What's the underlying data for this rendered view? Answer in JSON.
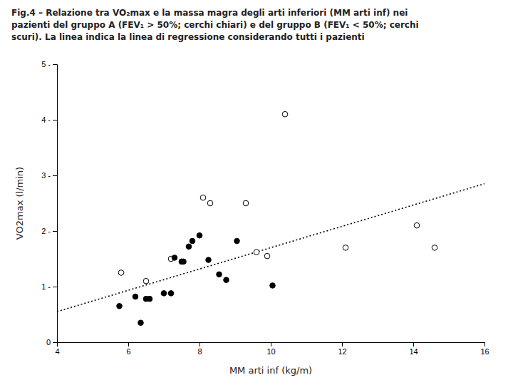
{
  "chart_data": {
    "type": "scatter",
    "title": "Fig.4 – Relazione tra VO₂max e la massa magra degli arti inferiori (MM arti inf) nei\npazienti del gruppo A (FEV₁ > 50%; cerchi chiari) e del gruppo B (FEV₁ < 50%; cerchi\nscuri). La linea indica la linea di regressione considerando tutti i pazienti",
    "x_label": "MM arti inf (kg/m)",
    "y_label": "VO2max (l/min)",
    "xlim": [
      4,
      16
    ],
    "ylim": [
      0,
      5
    ],
    "xticks": [
      4,
      6,
      8,
      10,
      12,
      14,
      16
    ],
    "yticks": [
      0,
      {
        "value": 1,
        "label": "1 -"
      },
      {
        "value": 2,
        "label": "2 -"
      },
      {
        "value": 3,
        "label": "3 -"
      },
      {
        "value": 4,
        "label": "4 -"
      },
      {
        "value": 5,
        "label": "5 -"
      }
    ],
    "grid": false,
    "series": [
      {
        "type": "scatter",
        "marker": "open-circle",
        "color": "#000000",
        "x": [
          5.8,
          6.5,
          7.2,
          7.5,
          8.1,
          8.3,
          9.3,
          9.6,
          9.9,
          10.4,
          12.1,
          14.1,
          14.6
        ],
        "values": [
          1.25,
          1.1,
          1.5,
          1.45,
          2.6,
          2.5,
          2.5,
          1.62,
          1.55,
          4.1,
          1.7,
          2.1,
          1.7
        ]
      },
      {
        "type": "scatter",
        "marker": "circle",
        "color": "#000000",
        "x": [
          5.75,
          6.2,
          6.35,
          6.5,
          6.6,
          7.0,
          7.2,
          7.3,
          7.5,
          7.55,
          7.7,
          7.8,
          8.0,
          8.25,
          8.55,
          8.75,
          9.05,
          10.05
        ],
        "values": [
          0.65,
          0.82,
          0.35,
          0.78,
          0.78,
          0.88,
          0.88,
          1.52,
          1.45,
          1.45,
          1.72,
          1.82,
          1.92,
          1.48,
          1.22,
          1.12,
          1.82,
          1.02
        ]
      },
      {
        "type": "line",
        "line_style": "dotted",
        "color": "#000000",
        "x": [
          4,
          16
        ],
        "values": [
          0.55,
          2.85
        ]
      }
    ]
  }
}
